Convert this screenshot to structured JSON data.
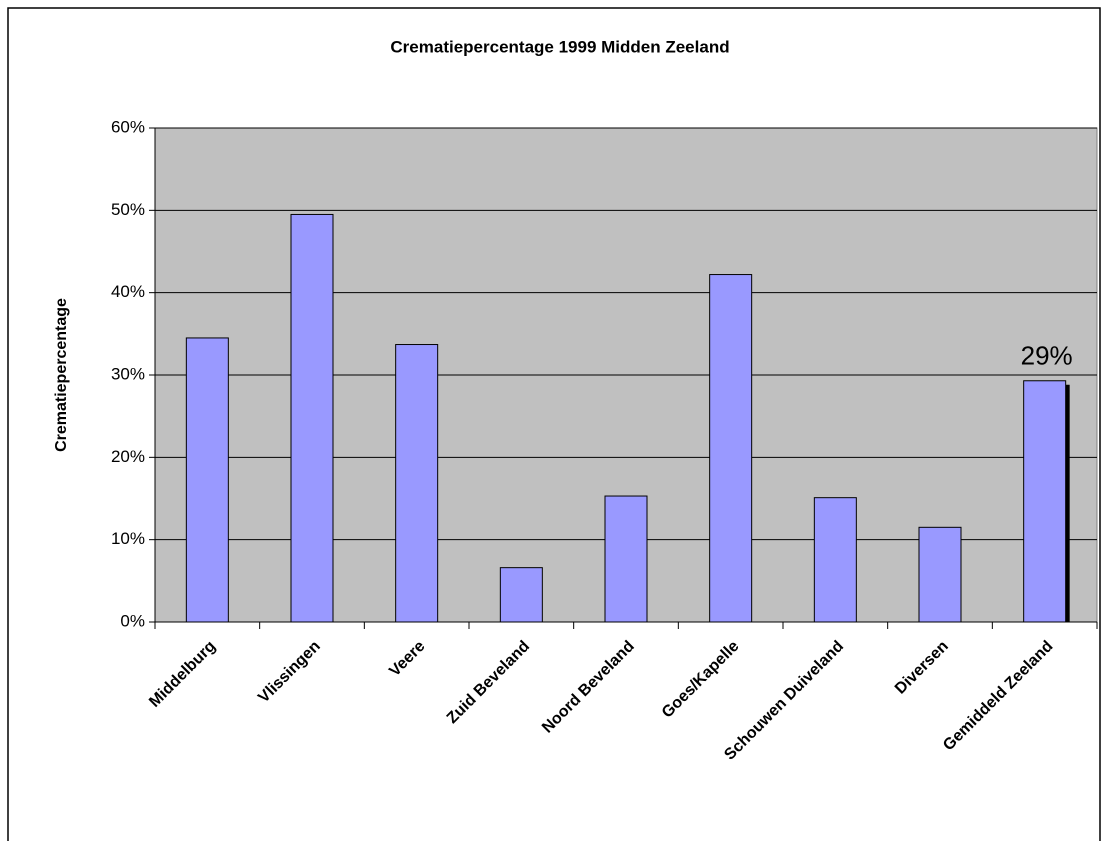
{
  "chart_data": {
    "type": "bar",
    "title": "Crematiepercentage 1999 Midden Zeeland",
    "y_label": "Crematiepercentage",
    "categories": [
      "Middelburg",
      "Vlissingen",
      "Veere",
      "Zuid Beveland",
      "Noord Beveland",
      "Goes/Kapelle",
      "Schouwen Duiveland",
      "Diversen",
      "Gemiddeld Zeeland"
    ],
    "values": [
      34.5,
      49.5,
      33.7,
      6.6,
      15.3,
      42.2,
      15.1,
      11.5,
      29.3
    ],
    "value_labels": [
      null,
      null,
      null,
      null,
      null,
      null,
      null,
      null,
      "29%"
    ],
    "color": "#9999ff",
    "ylim": [
      0,
      60
    ],
    "yticks": [
      {
        "value": 0,
        "label": "0%"
      },
      {
        "value": 10,
        "label": "10%"
      },
      {
        "value": 20,
        "label": "20%"
      },
      {
        "value": 30,
        "label": "30%"
      },
      {
        "value": 40,
        "label": "40%"
      },
      {
        "value": 50,
        "label": "50%"
      },
      {
        "value": 60,
        "label": "60%"
      }
    ],
    "grid": true
  }
}
